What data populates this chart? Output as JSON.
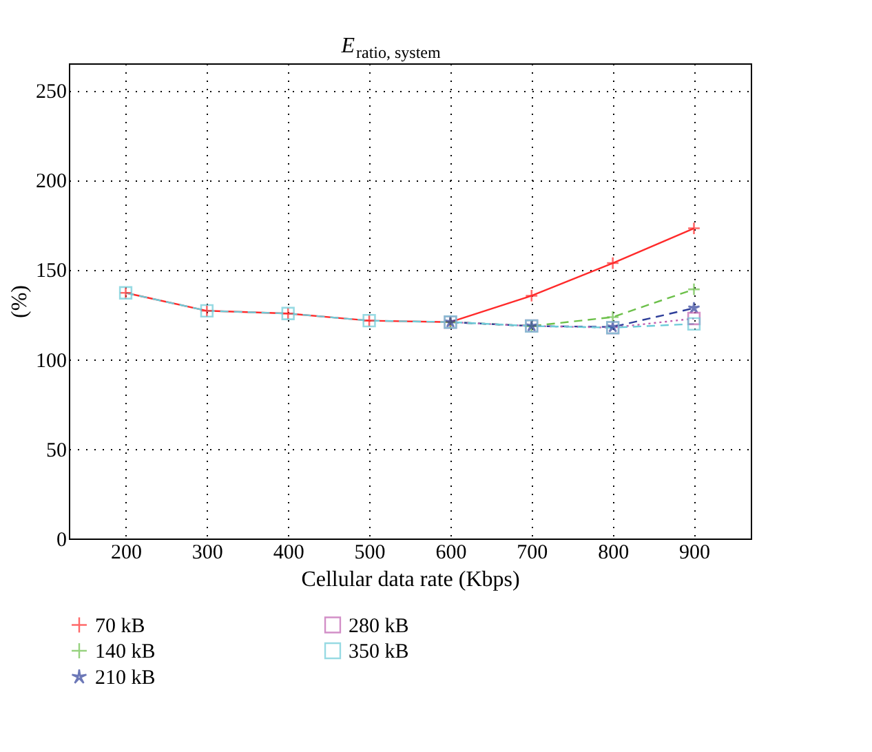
{
  "chart_data": {
    "type": "line",
    "title": "E$_{ratio, system}$",
    "xlabel": "Cellular data rate (Kbps)",
    "ylabel": "(%)",
    "x": [
      200,
      300,
      400,
      500,
      600,
      700,
      800,
      900
    ],
    "xlim": [
      130,
      970
    ],
    "ylim": [
      0,
      265
    ],
    "xticks": [
      200,
      300,
      400,
      500,
      600,
      700,
      800,
      900
    ],
    "yticks": [
      0,
      50,
      100,
      150,
      200,
      250
    ],
    "grid": true,
    "legend": "bottom",
    "series": [
      {
        "name": "70 kB",
        "color": "#ff2a2a",
        "marker": "cross",
        "line_style": "solid",
        "values": [
          137,
          127,
          125.5,
          121.5,
          120.7,
          135.4,
          153.6,
          173
        ]
      },
      {
        "name": "140 kB",
        "color": "#6cc04a",
        "marker": "cross",
        "line_style": "dashed",
        "values": [
          null,
          null,
          null,
          null,
          120.7,
          118.5,
          123.5,
          139
        ]
      },
      {
        "name": "210 kB",
        "color": "#2f3f9a",
        "marker": "star",
        "line_style": "dashed",
        "values": [
          null,
          null,
          null,
          null,
          120.7,
          118.5,
          118,
          128.5
        ]
      },
      {
        "name": "280 kB",
        "color": "#c060b0",
        "marker": "square",
        "line_style": "dotted",
        "values": [
          null,
          null,
          null,
          null,
          120.7,
          118.5,
          117.6,
          122.7
        ]
      },
      {
        "name": "350 kB",
        "color": "#6ccbd8",
        "marker": "square",
        "line_style": "dashed",
        "values": [
          137,
          127,
          125.5,
          121.5,
          120.7,
          118.5,
          117.6,
          119.7
        ]
      }
    ]
  }
}
